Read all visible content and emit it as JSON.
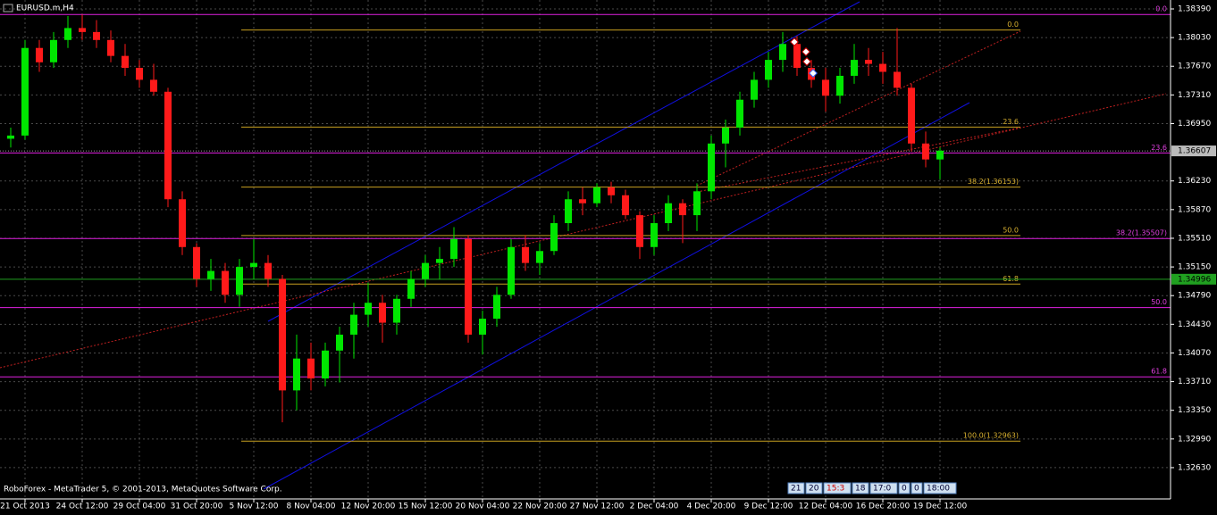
{
  "chart_data": {
    "type": "candlestick",
    "title": "EURUSD.m,H4",
    "footer": "RoboForex - MetaTrader 5, © 2001-2013, MetaQuotes Software Corp.",
    "up_color": "#00e600",
    "down_color": "#ff1a1a",
    "grid": true,
    "categories": [
      null,
      "21 Oct 2013",
      null,
      null,
      null,
      "24 Oct 12:00",
      null,
      null,
      null,
      "29 Oct 04:00",
      null,
      null,
      null,
      "31 Oct 20:00",
      null,
      null,
      null,
      "5 Nov 12:00",
      null,
      null,
      null,
      "8 Nov 04:00",
      null,
      null,
      null,
      "12 Nov 20:00",
      null,
      null,
      null,
      "15 Nov 12:00",
      null,
      null,
      null,
      "20 Nov 04:00",
      null,
      null,
      null,
      "22 Nov 20:00",
      null,
      null,
      null,
      "27 Nov 12:00",
      null,
      null,
      null,
      "2 Dec 04:00",
      null,
      null,
      null,
      "4 Dec 20:00",
      null,
      null,
      null,
      "9 Dec 12:00",
      null,
      null,
      null,
      "12 Dec 04:00",
      null,
      null,
      null,
      "16 Dec 20:00",
      null,
      null,
      null,
      "19 Dec 12:00"
    ],
    "open": [
      1.3676,
      1.368,
      1.379,
      1.3772,
      1.38,
      1.3815,
      1.381,
      1.38,
      1.378,
      1.3765,
      1.375,
      1.3735,
      1.36,
      1.354,
      1.35,
      1.351,
      1.348,
      1.3515,
      1.352,
      1.35,
      1.336,
      1.34,
      1.3375,
      1.341,
      1.343,
      1.3455,
      1.347,
      1.3445,
      1.3475,
      1.35,
      1.352,
      1.3525,
      1.355,
      1.343,
      1.345,
      1.348,
      1.354,
      1.352,
      1.3535,
      1.357,
      1.36,
      1.3595,
      1.3615,
      1.3605,
      1.358,
      1.354,
      1.357,
      1.3595,
      1.358,
      1.361,
      1.367,
      1.369,
      1.3725,
      1.375,
      1.3775,
      1.3795,
      1.3765,
      1.375,
      1.373,
      1.3755,
      1.3775,
      1.377,
      1.376,
      1.374,
      1.367,
      1.365
    ],
    "high": [
      1.369,
      1.38,
      1.38,
      1.381,
      1.383,
      1.3832,
      1.3825,
      1.3812,
      1.3795,
      1.3775,
      1.377,
      1.374,
      1.361,
      1.3545,
      1.3525,
      1.352,
      1.3525,
      1.355,
      1.353,
      1.3505,
      1.343,
      1.342,
      1.342,
      1.344,
      1.347,
      1.3495,
      1.348,
      1.348,
      1.351,
      1.353,
      1.354,
      1.3565,
      1.3555,
      1.346,
      1.349,
      1.355,
      1.3555,
      1.3545,
      1.358,
      1.361,
      1.3615,
      1.362,
      1.3622,
      1.3612,
      1.3585,
      1.358,
      1.3605,
      1.36,
      1.362,
      1.368,
      1.37,
      1.3735,
      1.376,
      1.3785,
      1.381,
      1.3805,
      1.3775,
      1.3765,
      1.3765,
      1.3795,
      1.379,
      1.3785,
      1.3815,
      1.3745,
      1.3685,
      1.3665
    ],
    "low": [
      1.3665,
      1.3675,
      1.376,
      1.3765,
      1.379,
      1.38,
      1.379,
      1.3772,
      1.3755,
      1.374,
      1.373,
      1.359,
      1.353,
      1.349,
      1.3485,
      1.347,
      1.3465,
      1.35,
      1.349,
      1.332,
      1.3335,
      1.336,
      1.3365,
      1.337,
      1.34,
      1.344,
      1.342,
      1.343,
      1.3465,
      1.349,
      1.35,
      1.3515,
      1.342,
      1.3405,
      1.344,
      1.3475,
      1.351,
      1.3505,
      1.353,
      1.356,
      1.358,
      1.359,
      1.3595,
      1.3575,
      1.3525,
      1.353,
      1.356,
      1.3545,
      1.356,
      1.36,
      1.364,
      1.368,
      1.3715,
      1.374,
      1.376,
      1.3755,
      1.374,
      1.371,
      1.372,
      1.3745,
      1.3755,
      1.3745,
      1.373,
      1.366,
      1.364,
      1.3625
    ],
    "close": [
      1.368,
      1.379,
      1.3772,
      1.38,
      1.3815,
      1.381,
      1.38,
      1.378,
      1.3765,
      1.375,
      1.3735,
      1.36,
      1.354,
      1.35,
      1.351,
      1.348,
      1.3515,
      1.352,
      1.35,
      1.336,
      1.34,
      1.3375,
      1.341,
      1.343,
      1.3455,
      1.347,
      1.3445,
      1.3475,
      1.35,
      1.352,
      1.3525,
      1.355,
      1.343,
      1.345,
      1.348,
      1.354,
      1.352,
      1.3535,
      1.357,
      1.36,
      1.3595,
      1.3615,
      1.3605,
      1.358,
      1.354,
      1.357,
      1.3595,
      1.358,
      1.361,
      1.367,
      1.369,
      1.3725,
      1.375,
      1.3775,
      1.3795,
      1.3765,
      1.375,
      1.373,
      1.3755,
      1.3775,
      1.377,
      1.376,
      1.374,
      1.367,
      1.365,
      1.3661
    ],
    "ylim": [
      1.32237,
      1.38502
    ],
    "yticks": [
      {
        "value": 1.3839,
        "label": "1.38390"
      },
      {
        "value": 1.3803,
        "label": "1.38030"
      },
      {
        "value": 1.3767,
        "label": "1.37670"
      },
      {
        "value": 1.3731,
        "label": "1.37310"
      },
      {
        "value": 1.3695,
        "label": "1.36950"
      },
      {
        "value": 1.3623,
        "label": "1.36230"
      },
      {
        "value": 1.3587,
        "label": "1.35870"
      },
      {
        "value": 1.3551,
        "label": "1.35510"
      },
      {
        "value": 1.3515,
        "label": "1.35150"
      },
      {
        "value": 1.3479,
        "label": "1.34790"
      },
      {
        "value": 1.3443,
        "label": "1.34430"
      },
      {
        "value": 1.3407,
        "label": "1.34070"
      },
      {
        "value": 1.3371,
        "label": "1.33710"
      },
      {
        "value": 1.3335,
        "label": "1.33350"
      },
      {
        "value": 1.3299,
        "label": "1.32990"
      },
      {
        "value": 1.3263,
        "label": "1.32630"
      }
    ],
    "current_price": 1.36607,
    "level_line": 1.34996,
    "fib_gold": [
      {
        "value": 1.38125,
        "label": "0.0"
      },
      {
        "value": 1.36907,
        "label": "23.6"
      },
      {
        "value": 1.36153,
        "label": "38.2(1.36153)"
      },
      {
        "value": 1.35544,
        "label": "50.0"
      },
      {
        "value": 1.34935,
        "label": "61.8"
      },
      {
        "value": 1.32963,
        "label": "100.0(1.32963)"
      }
    ],
    "fib_magenta": [
      {
        "value": 1.3832,
        "label": "0.0"
      },
      {
        "value": 1.36582,
        "label": "23.6"
      },
      {
        "value": 1.35507,
        "label": "38.2(1.35507)"
      },
      {
        "value": 1.3464,
        "label": "50.0"
      },
      {
        "value": 1.3377,
        "label": "61.8"
      }
    ],
    "time_boxes": [
      "21",
      "20",
      "15:3",
      "18",
      "17:0",
      "0",
      "0",
      "18:00"
    ]
  }
}
